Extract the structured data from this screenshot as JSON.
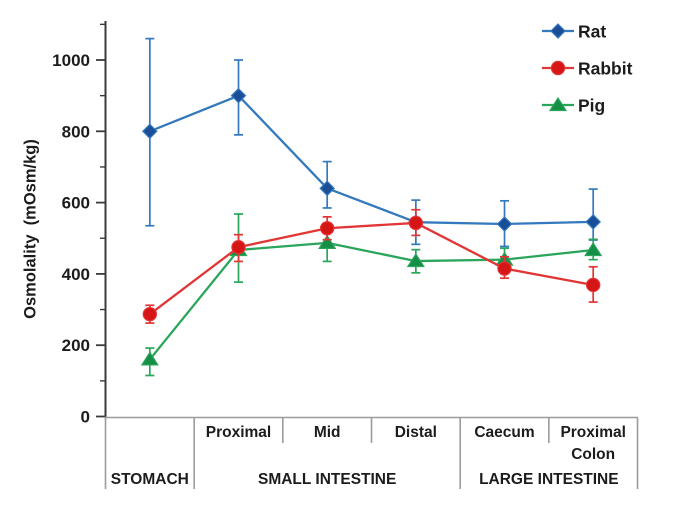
{
  "chart_data": {
    "type": "line",
    "title": "",
    "ylabel": "Osmolality  (mOsm/kg)",
    "xlabel": "",
    "ylim": [
      0,
      1110
    ],
    "y_ticks": [
      0,
      200,
      400,
      600,
      800,
      1000
    ],
    "y_minor_ticks": [
      100,
      300,
      500,
      700,
      900,
      1100
    ],
    "grid": false,
    "legend_position": "top-right",
    "categories": [
      "Stomach",
      "Proximal",
      "Mid",
      "Distal",
      "Caecum",
      "Proximal Colon"
    ],
    "x_sub_labels": [
      "",
      "Proximal",
      "Mid",
      "Distal",
      "Caecum",
      "Proximal\nColon"
    ],
    "x_groups": [
      {
        "label": "STOMACH",
        "start": 0,
        "end": 0
      },
      {
        "label": "SMALL INTESTINE",
        "start": 1,
        "end": 3
      },
      {
        "label": "LARGE INTESTINE",
        "start": 4,
        "end": 5
      }
    ],
    "series": [
      {
        "name": "Rat",
        "marker": "diamond",
        "line_color": "#3379bd",
        "marker_color": "#1a4f98",
        "values": [
          800,
          900,
          640,
          545,
          540,
          546
        ],
        "err_low": [
          535,
          790,
          585,
          483,
          477,
          495
        ],
        "err_high": [
          1060,
          1000,
          715,
          607,
          605,
          638
        ]
      },
      {
        "name": "Rabbit",
        "marker": "circle",
        "line_color": "#e23535",
        "marker_color": "#d61616",
        "values": [
          287,
          475,
          528,
          543,
          415,
          369
        ],
        "err_low": [
          262,
          435,
          496,
          508,
          388,
          321
        ],
        "err_high": [
          312,
          510,
          560,
          580,
          448,
          420
        ]
      },
      {
        "name": "Pig",
        "marker": "triangle",
        "line_color": "#2ba55c",
        "marker_color": "#148f45",
        "values": [
          160,
          467,
          487,
          436,
          440,
          467
        ],
        "err_low": [
          115,
          377,
          435,
          403,
          412,
          440
        ],
        "err_high": [
          192,
          568,
          530,
          468,
          472,
          497
        ]
      }
    ],
    "draw_order": [
      0,
      2,
      1
    ],
    "axis_color": "#3a3a3a",
    "table_line_color": "#9b9b9b",
    "text_color": "#1c1c1c"
  }
}
